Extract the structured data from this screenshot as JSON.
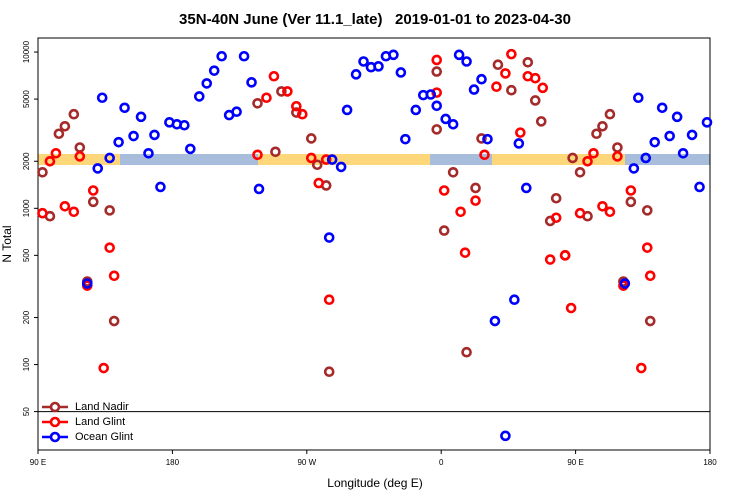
{
  "chart_data": {
    "type": "scatter",
    "title": "35N-40N June (Ver 11.1_late)   2019-01-01 to 2023-04-30",
    "x_label": "Longitude (deg E)",
    "y_label": "N Total",
    "y_log": true,
    "legend": "lower left",
    "xlim": [
      90,
      540
    ],
    "ylim": [
      28.4,
      12300
    ],
    "xticks": [
      {
        "value": 90,
        "label": "90 E"
      },
      180,
      {
        "value": 270,
        "label": "90 W"
      },
      {
        "value": 360,
        "label": "0"
      },
      {
        "value": 450,
        "label": "90 E"
      },
      {
        "value": 540,
        "label": "180"
      }
    ],
    "yticks": [
      50,
      100,
      200,
      500,
      1000,
      2000,
      5000,
      10000
    ],
    "series": [
      {
        "name": "Land Nadir",
        "color": "#a52a2a",
        "x": [
          93,
          98,
          104,
          108,
          114,
          118,
          123,
          127,
          138,
          141,
          237,
          249,
          253,
          263,
          273,
          277,
          283,
          285,
          357,
          357,
          362,
          368,
          377,
          383,
          387,
          398,
          407,
          418,
          423,
          427,
          433,
          437,
          443,
          448,
          453,
          458,
          464,
          468,
          473,
          478,
          482,
          487,
          498,
          500
        ],
        "values": [
          1700,
          890,
          3000,
          3350,
          4000,
          2450,
          340,
          1100,
          970,
          190,
          4700,
          2300,
          5600,
          4100,
          2800,
          1900,
          1400,
          90,
          3200,
          7500,
          720,
          1700,
          120,
          1350,
          2800,
          8300,
          5700,
          8600,
          4900,
          3600,
          830,
          1160,
          500,
          2100,
          1700,
          890,
          3000,
          3350,
          4000,
          2450,
          340,
          1100,
          970,
          190
        ]
      },
      {
        "name": "Land Glint",
        "color": "#ff0000",
        "x": [
          93,
          98,
          102,
          108,
          114,
          118,
          123,
          127,
          134,
          138,
          141,
          237,
          243,
          248,
          257,
          263,
          267,
          273,
          278,
          283,
          285,
          357,
          357,
          362,
          373,
          376,
          383,
          389,
          397,
          403,
          407,
          413,
          418,
          423,
          428,
          433,
          437,
          443,
          447,
          453,
          458,
          462,
          468,
          473,
          478,
          482,
          487,
          494,
          498,
          500
        ],
        "values": [
          930,
          2000,
          2250,
          1030,
          950,
          2150,
          320,
          1300,
          95,
          560,
          370,
          2200,
          5100,
          7000,
          5600,
          4500,
          4000,
          2100,
          1450,
          2050,
          260,
          5500,
          8900,
          1300,
          950,
          520,
          1120,
          2200,
          6000,
          7300,
          9700,
          3050,
          7000,
          6800,
          5900,
          470,
          870,
          500,
          230,
          930,
          2000,
          2250,
          1030,
          950,
          2150,
          320,
          1300,
          95,
          560,
          370
        ]
      },
      {
        "name": "Ocean Glint",
        "color": "#0000ff",
        "x": [
          123,
          130,
          133,
          138,
          144,
          148,
          154,
          159,
          164,
          168,
          172,
          178,
          183,
          188,
          192,
          198,
          203,
          208,
          213,
          218,
          223,
          228,
          233,
          238,
          285,
          287,
          293,
          297,
          303,
          308,
          313,
          318,
          323,
          328,
          333,
          336,
          343,
          348,
          353,
          357,
          363,
          368,
          372,
          377,
          382,
          387,
          391,
          396,
          403,
          409,
          412,
          417,
          483,
          489,
          492,
          497,
          503,
          508,
          513,
          518,
          522,
          528,
          533,
          538
        ],
        "values": [
          330,
          1800,
          5100,
          2100,
          2650,
          4400,
          2900,
          3850,
          2250,
          2950,
          1370,
          3550,
          3450,
          3400,
          2400,
          5200,
          6300,
          7600,
          9400,
          3950,
          4150,
          9400,
          6400,
          1330,
          650,
          2050,
          1840,
          4260,
          7200,
          8700,
          8000,
          8100,
          9400,
          9600,
          7400,
          2770,
          4260,
          5300,
          5350,
          4530,
          3730,
          3450,
          9600,
          8700,
          5750,
          6700,
          2770,
          190,
          35,
          260,
          2600,
          1350,
          330,
          1800,
          5100,
          2100,
          2650,
          4400,
          2900,
          3850,
          2250,
          2950,
          1370,
          3550
        ]
      }
    ]
  }
}
